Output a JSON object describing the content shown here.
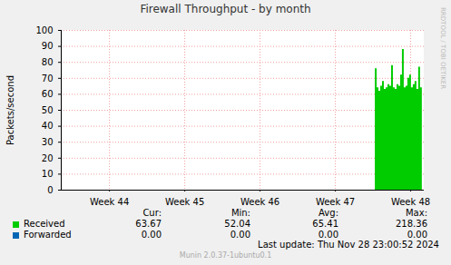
{
  "chart_data": {
    "type": "area",
    "title": "Firewall Throughput - by month",
    "ylabel": "Packets/second",
    "x": [
      48.03,
      48.054,
      48.078,
      48.102,
      48.126,
      48.15,
      48.174,
      48.198,
      48.222,
      48.246,
      48.27,
      48.294,
      48.318,
      48.342,
      48.366,
      48.39,
      48.414,
      48.438,
      48.462,
      48.486,
      48.51,
      48.534,
      48.558,
      48.582,
      48.606,
      48.63,
      48.654
    ],
    "series": [
      {
        "name": "Received",
        "type": "area",
        "color": "#00cc00",
        "values": [
          76,
          64,
          62,
          65,
          68,
          63,
          64,
          66,
          65,
          78,
          64,
          63,
          66,
          65,
          72,
          88,
          64,
          65,
          70,
          72,
          64,
          66,
          68,
          63,
          77,
          64,
          63.67
        ],
        "stats": [
          "63.67",
          "52.04",
          "65.41",
          "218.36"
        ]
      },
      {
        "name": "Forwarded",
        "type": "line",
        "color": "#0066b3",
        "values": [
          0,
          0,
          0,
          0,
          0,
          0,
          0,
          0,
          0,
          0,
          0,
          0,
          0,
          0,
          0,
          0,
          0,
          0,
          0,
          0,
          0,
          0,
          0,
          0,
          0,
          0,
          0
        ],
        "stats": [
          "0.00",
          "0.00",
          "0.00",
          "0.00"
        ]
      }
    ],
    "stats_headers": [
      "Cur:",
      "Min:",
      "Avg:",
      "Max:"
    ],
    "xlim": [
      43.86,
      48.68
    ],
    "xticks": [
      {
        "value": 44.5,
        "label": "Week 44"
      },
      {
        "value": 45.5,
        "label": "Week 45"
      },
      {
        "value": 46.5,
        "label": "Week 46"
      },
      {
        "value": 47.5,
        "label": "Week 47"
      },
      {
        "value": 48.5,
        "label": "Week 48"
      }
    ],
    "ylim": [
      0,
      100
    ],
    "yticks": [
      0,
      10,
      20,
      30,
      40,
      50,
      60,
      70,
      80,
      90,
      100
    ],
    "grid": true,
    "last_update": "Last update: Thu Nov 28 23:00:52 2024",
    "footer": "Munin 2.0.37-1ubuntu0.1",
    "watermark": "RRDTOOL / TOBI OETIKER"
  }
}
